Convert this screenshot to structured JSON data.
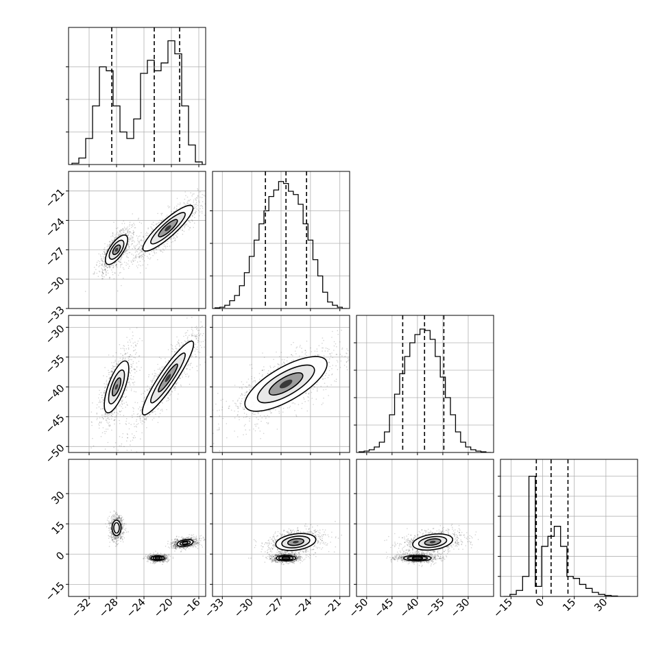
{
  "chart_data": {
    "type": "corner",
    "parameters": 4,
    "grid": true,
    "quantile_line_style": "dashed",
    "panels": [
      {
        "id": "hist-0",
        "type": "histogram",
        "row": 0,
        "col": 0,
        "xlim": [
          -35,
          -15
        ],
        "bins": [
          -34,
          -33,
          -32,
          -31,
          -30,
          -29,
          -28,
          -27,
          -26,
          -25,
          -24,
          -23,
          -22,
          -21,
          -20,
          -19,
          -18,
          -17,
          -16,
          -15
        ],
        "counts": [
          1,
          5,
          20,
          45,
          75,
          72,
          45,
          25,
          20,
          35,
          70,
          80,
          72,
          78,
          95,
          85,
          45,
          15,
          2,
          0
        ],
        "ymax": 100,
        "quantiles": [
          -28.7,
          -22.5,
          -18.8
        ],
        "yticks": [
          25,
          50,
          75
        ]
      },
      {
        "id": "scatter-1-0",
        "type": "density",
        "row": 1,
        "col": 0,
        "xlim": [
          -35,
          -15
        ],
        "ylim": [
          -33,
          -19
        ],
        "clusters": [
          {
            "center": [
              -28.0,
              -27.0
            ],
            "levels": [
              [
                2.5,
                1.0
              ],
              [
                1.6,
                0.7
              ],
              [
                0.8,
                0.4
              ],
              [
                0.3,
                0.2
              ]
            ],
            "angle": 56
          },
          {
            "center": [
              -20.5,
              -24.8
            ],
            "levels": [
              [
                4.8,
                1.2
              ],
              [
                3.3,
                0.8
              ],
              [
                1.8,
                0.5
              ],
              [
                0.6,
                0.25
              ]
            ],
            "angle": 42
          }
        ],
        "xticks": [
          -32,
          -28,
          -24,
          -20,
          -16
        ],
        "yticks": [
          -33,
          -30,
          -27,
          -24,
          -21
        ]
      },
      {
        "id": "hist-1",
        "type": "histogram",
        "row": 1,
        "col": 1,
        "xlim": [
          -34,
          -20
        ],
        "bins": [
          -33.5,
          -33,
          -32.5,
          -32,
          -31.5,
          -31,
          -30.5,
          -30,
          -29.5,
          -29,
          -28.5,
          -28,
          -27.5,
          -27,
          -26.5,
          -26,
          -25.5,
          -25,
          -24.5,
          -24,
          -23.5,
          -23,
          -22.5,
          -22,
          -21.5,
          -21,
          -20.5
        ],
        "counts": [
          1,
          2,
          5,
          12,
          20,
          35,
          55,
          80,
          105,
          130,
          150,
          172,
          182,
          195,
          192,
          180,
          175,
          160,
          130,
          105,
          75,
          50,
          25,
          10,
          5,
          2,
          0
        ],
        "ymax": 200,
        "quantiles": [
          -28.6,
          -26.5,
          -24.4
        ],
        "yticks": [
          50,
          100,
          150
        ]
      },
      {
        "id": "scatter-2-0",
        "type": "density",
        "row": 2,
        "col": 0,
        "xlim": [
          -35,
          -15
        ],
        "ylim": [
          -51,
          -28
        ],
        "clusters": [
          {
            "center": [
              -28.0,
              -40.0
            ],
            "levels": [
              [
                4.6,
                1.4
              ],
              [
                3.0,
                0.9
              ],
              [
                1.6,
                0.5
              ],
              [
                0.5,
                0.2
              ]
            ],
            "angle": 70
          },
          {
            "center": [
              -20.5,
              -38.5
            ],
            "levels": [
              [
                7.4,
                1.4
              ],
              [
                5.0,
                0.9
              ],
              [
                2.8,
                0.5
              ],
              [
                0.8,
                0.25
              ]
            ],
            "angle": 56
          }
        ],
        "xticks": [
          -32,
          -28,
          -24,
          -20,
          -16
        ],
        "yticks": [
          -50,
          -45,
          -40,
          -35,
          -30
        ]
      },
      {
        "id": "scatter-2-1",
        "type": "density",
        "row": 2,
        "col": 1,
        "xlim": [
          -34,
          -20
        ],
        "ylim": [
          -51,
          -28
        ],
        "clusters": [
          {
            "center": [
              -26.5,
              -39.5
            ],
            "levels": [
              [
                7.8,
                2.8
              ],
              [
                5.4,
                1.9
              ],
              [
                3.2,
                1.1
              ],
              [
                1.2,
                0.5
              ]
            ],
            "angle": 30
          }
        ],
        "xticks": [
          -33,
          -30,
          -27,
          -24,
          -21
        ],
        "yticks": [
          -50,
          -45,
          -40,
          -35,
          -30
        ]
      },
      {
        "id": "hist-2",
        "type": "histogram",
        "row": 2,
        "col": 2,
        "xlim": [
          -52,
          -25
        ],
        "bins": [
          -51,
          -50,
          -49,
          -48,
          -47,
          -46,
          -45,
          -44,
          -43,
          -42,
          -41,
          -40,
          -39,
          -38,
          -37,
          -36,
          -35,
          -34,
          -33,
          -32,
          -31,
          -30,
          -29,
          -28,
          -27,
          -26
        ],
        "counts": [
          1,
          2,
          4,
          8,
          15,
          30,
          55,
          85,
          115,
          140,
          160,
          172,
          180,
          178,
          165,
          140,
          110,
          80,
          55,
          30,
          15,
          8,
          4,
          2,
          1,
          0
        ],
        "ymax": 190,
        "quantiles": [
          -42.9,
          -38.6,
          -34.8
        ],
        "yticks": [
          40,
          80,
          120,
          160
        ]
      },
      {
        "id": "scatter-3-0",
        "type": "density",
        "row": 3,
        "col": 0,
        "xlim": [
          -35,
          -15
        ],
        "ylim": [
          -21,
          47
        ],
        "clusters": [
          {
            "center": [
              -28.0,
              13.0
            ],
            "levels": [
              [
                3.8,
                2.2
              ],
              [
                2.6,
                1.4
              ],
              [
                0,
                0
              ],
              [
                0,
                0
              ]
            ],
            "angle": 90
          },
          {
            "center": [
              -22.0,
              -2.0
            ],
            "levels": [
              [
                3.2,
                1.2
              ],
              [
                2.2,
                0.8
              ],
              [
                1.2,
                0.4
              ],
              [
                0.4,
                0.15
              ]
            ],
            "angle": 0
          },
          {
            "center": [
              -18.0,
              5.5
            ],
            "levels": [
              [
                4.0,
                1.6
              ],
              [
                2.6,
                1.0
              ],
              [
                1.4,
                0.6
              ],
              [
                0,
                0
              ]
            ],
            "angle": 10
          }
        ],
        "xticks": [
          -32,
          -28,
          -24,
          -20,
          -16
        ],
        "yticks": [
          -15,
          0,
          15,
          30
        ]
      },
      {
        "id": "scatter-3-1",
        "type": "density",
        "row": 3,
        "col": 1,
        "xlim": [
          -34,
          -20
        ],
        "ylim": [
          -21,
          47
        ],
        "clusters": [
          {
            "center": [
              -25.5,
              6.0
            ],
            "levels": [
              [
                10.0,
                4.0
              ],
              [
                7.0,
                2.8
              ],
              [
                4.0,
                1.6
              ],
              [
                1.5,
                0.6
              ]
            ],
            "angle": 8
          },
          {
            "center": [
              -26.5,
              -2.0
            ],
            "levels": [
              [
                4.8,
                1.4
              ],
              [
                3.6,
                0.9
              ],
              [
                2.0,
                0.5
              ],
              [
                0.6,
                0.2
              ]
            ],
            "angle": 0
          }
        ],
        "xticks": [
          -33,
          -30,
          -27,
          -24,
          -21
        ],
        "yticks": [
          -15,
          0,
          15,
          30
        ]
      },
      {
        "id": "scatter-3-2",
        "type": "density",
        "row": 3,
        "col": 2,
        "xlim": [
          -52,
          -25
        ],
        "ylim": [
          -21,
          47
        ],
        "clusters": [
          {
            "center": [
              -37.0,
              6.0
            ],
            "levels": [
              [
                10.0,
                3.8
              ],
              [
                7.0,
                2.6
              ],
              [
                4.0,
                1.5
              ],
              [
                1.5,
                0.6
              ]
            ],
            "angle": 8
          },
          {
            "center": [
              -40.0,
              -2.0
            ],
            "levels": [
              [
                6.8,
                1.4
              ],
              [
                5.0,
                0.9
              ],
              [
                2.6,
                0.5
              ],
              [
                0.8,
                0.2
              ]
            ],
            "angle": 0
          }
        ],
        "xticks": [
          -50,
          -45,
          -40,
          -35,
          -30
        ],
        "yticks": [
          -15,
          0,
          15,
          30
        ]
      },
      {
        "id": "hist-3",
        "type": "histogram",
        "row": 3,
        "col": 3,
        "xlim": [
          -20,
          45
        ],
        "bins": [
          -17,
          -14,
          -11,
          -8,
          -5,
          -2,
          1,
          4,
          7,
          10,
          13,
          16,
          19,
          22,
          25,
          28,
          31,
          34,
          37,
          40
        ],
        "counts": [
          0,
          1,
          3,
          10,
          60,
          5,
          25,
          30,
          35,
          25,
          10,
          9,
          6,
          4,
          2,
          1,
          0.5,
          0.2,
          0,
          0
        ],
        "ymax": 65,
        "quantiles": [
          -3.0,
          4.0,
          12.0
        ],
        "yticks": [
          10,
          20,
          30,
          40,
          50,
          60
        ]
      }
    ],
    "xtick_labels": [
      [
        "−32",
        "−28",
        "−24",
        "−20",
        "−16"
      ],
      [
        "−33",
        "−30",
        "−27",
        "−24",
        "−21"
      ],
      [
        "−50",
        "−45",
        "−40",
        "−35",
        "−30"
      ],
      [
        "−15",
        "0",
        "15",
        "30"
      ]
    ],
    "ytick_labels": [
      [],
      [
        "−33",
        "−30",
        "−27",
        "−24",
        "−21"
      ],
      [
        "−50",
        "−45",
        "−40",
        "−35",
        "−30"
      ],
      [
        "−15",
        "0",
        "15",
        "30"
      ]
    ],
    "hist3_xticks": [
      -15,
      0,
      15,
      30
    ]
  }
}
